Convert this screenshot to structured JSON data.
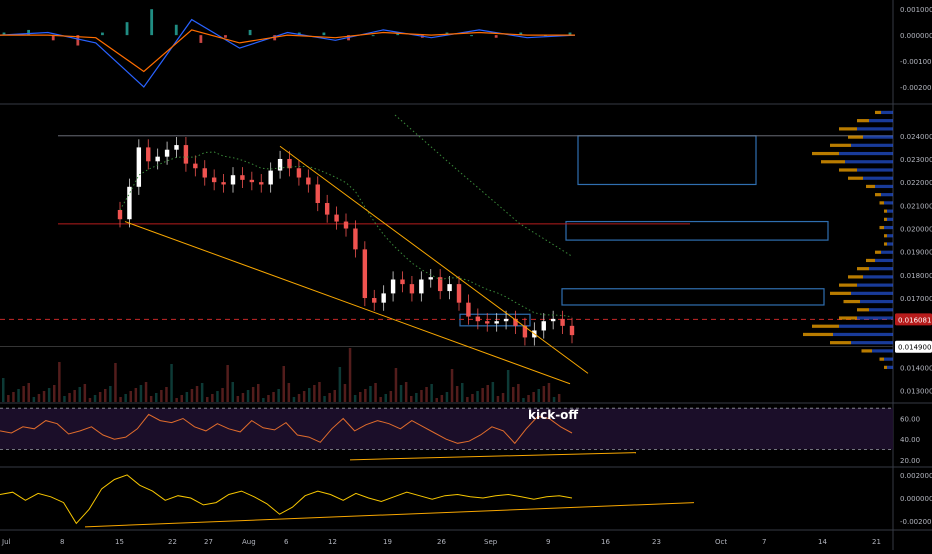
{
  "chart_data": [
    {
      "type": "line",
      "panel": "MACD",
      "series": [
        {
          "name": "",
          "color": "#2962ff",
          "x": [
            0,
            4,
            8,
            12,
            16,
            20,
            24,
            28,
            32,
            36,
            40,
            44,
            48
          ],
          "values": [
            0.0,
            0.0001,
            -0.0003,
            -0.002,
            0.0006,
            -0.0005,
            0.0001,
            -0.0002,
            0.0002,
            -0.0001,
            0.0002,
            -0.0001,
            0.0
          ]
        },
        {
          "name": "",
          "color": "#ff6d00",
          "x": [
            0,
            4,
            8,
            12,
            16,
            20,
            24,
            28,
            32,
            36,
            40,
            44,
            48
          ],
          "values": [
            0.0,
            0.0,
            -0.0001,
            -0.0014,
            0.0002,
            -0.0003,
            0.0,
            -0.0001,
            0.0001,
            0.0,
            0.0001,
            0.0,
            0.0
          ]
        }
      ],
      "histogram": [
        0.0001,
        0.0002,
        -0.0002,
        -0.0004,
        0.0001,
        0.0005,
        0.001,
        0.0004,
        -0.0003,
        -0.0001,
        0.0002,
        -0.0002,
        0.0001,
        0.0001,
        -0.0002,
        0.0,
        0.0001,
        -0.0001,
        0.0001,
        0.0,
        -0.0001,
        0.0001,
        0.0,
        0.0001
      ],
      "ylim": [
        -0.0025,
        0.0012
      ],
      "y_ticks": [
        "0.001000",
        "0.000000",
        "-0.001000",
        "-0.002000"
      ]
    },
    {
      "type": "candlestick",
      "panel": "price",
      "x_ticks": [
        "Jul",
        "8",
        "15",
        "22",
        "27",
        "Aug",
        "6",
        "12",
        "19",
        "26",
        "Sep",
        "9",
        "16",
        "23",
        "Oct",
        "7",
        "14",
        "21"
      ],
      "y_ticks": [
        "0.024000",
        "0.023000",
        "0.022000",
        "0.021000",
        "0.020000",
        "0.019000",
        "0.018000",
        "0.017000",
        "0.016000",
        "0.015000",
        "0.014000",
        "0.013000"
      ],
      "ylim": [
        0.0126,
        0.0252
      ],
      "last_price": "0.016081",
      "marked_price": "0.014900",
      "closes": [
        0.0204,
        0.0218,
        0.0235,
        0.0229,
        0.0231,
        0.0234,
        0.0236,
        0.0228,
        0.0226,
        0.0222,
        0.022,
        0.0219,
        0.0223,
        0.0221,
        0.022,
        0.0219,
        0.0225,
        0.023,
        0.0226,
        0.0222,
        0.0219,
        0.0211,
        0.0206,
        0.0203,
        0.02,
        0.0191,
        0.017,
        0.0168,
        0.0172,
        0.0178,
        0.0176,
        0.0172,
        0.0178,
        0.0179,
        0.0173,
        0.0176,
        0.0168,
        0.0162,
        0.016,
        0.0159,
        0.016,
        0.0161,
        0.0158,
        0.0153,
        0.0156,
        0.016,
        0.0161,
        0.0158,
        0.0154
      ],
      "horizontal_levels": [
        0.024,
        0.0202,
        0.016,
        0.0149
      ],
      "zones": [
        {
          "from": 0.0219,
          "to": 0.024
        },
        {
          "from": 0.0195,
          "to": 0.0203
        },
        {
          "from": 0.0167,
          "to": 0.0174
        },
        {
          "from": 0.0158,
          "to": 0.0163
        }
      ],
      "volume_profile": [
        0.2,
        0.4,
        0.6,
        0.5,
        0.7,
        0.9,
        0.8,
        0.6,
        0.5,
        0.3,
        0.2,
        0.15,
        0.1,
        0.1,
        0.15,
        0.1,
        0.1,
        0.2,
        0.3,
        0.4,
        0.5,
        0.6,
        0.7,
        0.55,
        0.4,
        0.6,
        0.9,
        1.0,
        0.7,
        0.35,
        0.15,
        0.1
      ]
    },
    {
      "type": "line",
      "panel": "RSI",
      "annotation": "kick-off",
      "y_ticks": [
        "60.00",
        "40.00",
        "20.00"
      ],
      "ylim": [
        15,
        75
      ],
      "band": [
        30,
        70
      ],
      "values": [
        48,
        46,
        52,
        50,
        58,
        55,
        45,
        48,
        52,
        44,
        40,
        42,
        50,
        64,
        58,
        56,
        60,
        52,
        48,
        55,
        50,
        47,
        58,
        51,
        49,
        56,
        44,
        42,
        37,
        50,
        60,
        48,
        54,
        58,
        55,
        50,
        58,
        52,
        46,
        40,
        36,
        38,
        44,
        52,
        48,
        36,
        50,
        62,
        60,
        52,
        46
      ]
    },
    {
      "type": "line",
      "panel": "oscillator",
      "y_ticks": [
        "0.002000",
        "0.000000",
        "-0.002000"
      ],
      "ylim": [
        -0.0026,
        0.0026
      ],
      "values": [
        0.0003,
        0.0005,
        -0.0002,
        0.0004,
        0.0001,
        -0.0004,
        -0.0022,
        -0.001,
        0.0008,
        0.0016,
        0.002,
        0.0011,
        0.0006,
        -0.0002,
        0.0002,
        0.0,
        -0.0006,
        -0.0004,
        0.0003,
        0.0006,
        0.0001,
        -0.0005,
        -0.0014,
        -0.0008,
        0.0002,
        0.0006,
        0.0003,
        -0.0002,
        0.0004,
        0.0,
        -0.0003,
        0.0001,
        0.0005,
        0.0002,
        -0.0001,
        0.0002,
        0.0003,
        0.0001,
        0.0,
        0.0002,
        0.0003,
        0.0001,
        -0.0001,
        0.0001,
        0.0002,
        0.0
      ]
    }
  ]
}
